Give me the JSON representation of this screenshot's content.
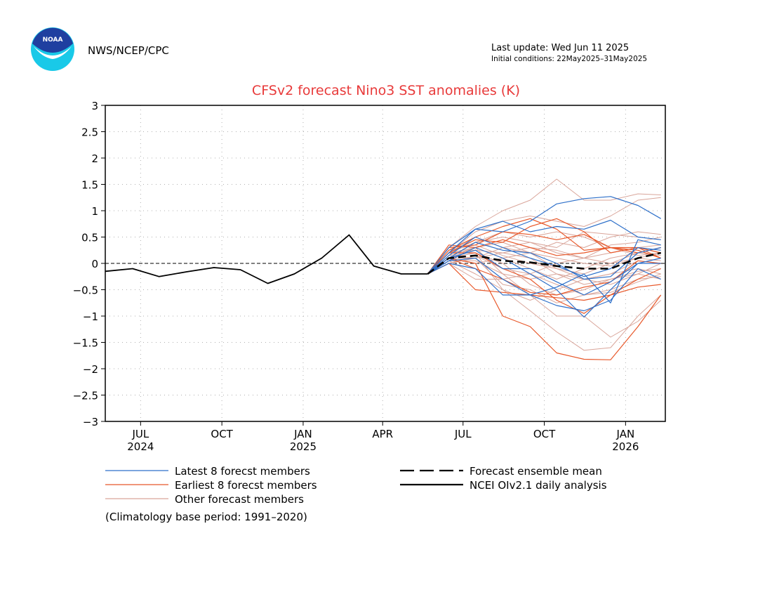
{
  "header": {
    "logo_text": "NOAA",
    "agency": "NWS/NCEP/CPC",
    "last_update": "Last update: Wed Jun 11 2025",
    "initial_conditions": "Initial conditions: 22May2025–31May2025"
  },
  "colors": {
    "title": "#e83a3a",
    "latest": "#2d6fc9",
    "earliest": "#e8582a",
    "other": "#d9a59a",
    "mean": "#000000",
    "analysis": "#000000",
    "grid": "#b0b0b0",
    "logo_top": "#1f3fa0",
    "logo_bottom": "#19c9e8"
  },
  "footnote": "(Climatology base period: 1991–2020)",
  "chart_data": {
    "type": "line",
    "title": "CFSv2 forecast Nino3 SST anomalies (K)",
    "xlabel": "",
    "ylabel": "",
    "ylim": [
      -3,
      3
    ],
    "yticks": [
      3,
      2.5,
      2,
      1.5,
      1,
      0.5,
      0,
      -0.5,
      -1,
      -1.5,
      -2,
      -2.5,
      -3
    ],
    "ytick_labels": [
      "3",
      "2.5",
      "2",
      "1.5",
      "1",
      "0.5",
      "0",
      "−0.5",
      "−1",
      "−1.5",
      "−2",
      "−2.5",
      "−3"
    ],
    "xlim": [
      "2024-05-22",
      "2026-02-15"
    ],
    "xticks": [
      {
        "date": "2024-07-01",
        "label": "JUL",
        "year": "2024"
      },
      {
        "date": "2024-10-01",
        "label": "OCT",
        "year": ""
      },
      {
        "date": "2025-01-01",
        "label": "JAN",
        "year": "2025"
      },
      {
        "date": "2025-04-01",
        "label": "APR",
        "year": ""
      },
      {
        "date": "2025-07-01",
        "label": "JUL",
        "year": ""
      },
      {
        "date": "2025-10-01",
        "label": "OCT",
        "year": ""
      },
      {
        "date": "2026-01-01",
        "label": "JAN",
        "year": "2026"
      }
    ],
    "zero_line": "dashed",
    "grid": true,
    "legend": {
      "position": "bottom",
      "entries": [
        {
          "key": "latest",
          "label": "Latest 8 forecst members",
          "style": "solid"
        },
        {
          "key": "earliest",
          "label": "Earliest 8 forecst members",
          "style": "solid"
        },
        {
          "key": "other",
          "label": "Other forecast members",
          "style": "solid"
        },
        {
          "key": "mean",
          "label": "Forecast ensemble mean",
          "style": "dashed"
        },
        {
          "key": "analysis",
          "label": "NCEI OIv2.1 daily analysis",
          "style": "solid"
        }
      ]
    },
    "analysis": {
      "x": [
        "2024-05-22",
        "2024-06-22",
        "2024-07-22",
        "2024-08-22",
        "2024-09-22",
        "2024-10-22",
        "2024-11-22",
        "2024-12-22",
        "2025-01-22",
        "2025-02-22",
        "2025-03-22",
        "2025-04-22",
        "2025-05-22"
      ],
      "y": [
        -0.15,
        -0.1,
        -0.25,
        -0.16,
        -0.08,
        -0.12,
        -0.38,
        -0.2,
        0.1,
        0.54,
        -0.05,
        -0.2,
        -0.2
      ]
    },
    "forecast_x": [
      "2025-05-22",
      "2025-06-15",
      "2025-07-15",
      "2025-08-15",
      "2025-09-15",
      "2025-10-15",
      "2025-11-15",
      "2025-12-15",
      "2026-01-15",
      "2026-02-10"
    ],
    "ensemble_mean": [
      -0.2,
      0.1,
      0.15,
      0.05,
      0.02,
      -0.05,
      -0.1,
      -0.1,
      0.1,
      0.2
    ],
    "latest_members": [
      [
        -0.2,
        0.3,
        0.65,
        0.6,
        0.8,
        1.13,
        1.23,
        1.27,
        1.1,
        0.85
      ],
      [
        -0.2,
        0.2,
        0.65,
        0.8,
        0.6,
        0.7,
        0.65,
        0.82,
        0.5,
        0.45
      ],
      [
        -0.2,
        0.15,
        0.5,
        0.3,
        0.1,
        -0.05,
        -0.25,
        -0.1,
        0.3,
        0.25
      ],
      [
        -0.2,
        0.05,
        0.3,
        0.1,
        -0.2,
        -0.5,
        -1.02,
        -0.5,
        0.0,
        0.1
      ],
      [
        -0.2,
        0.05,
        0.1,
        -0.3,
        -0.6,
        -0.8,
        -0.9,
        -0.7,
        -0.1,
        -0.3
      ],
      [
        -0.2,
        0.1,
        0.25,
        -0.1,
        -0.1,
        -0.35,
        -0.6,
        -0.35,
        0.0,
        0.0
      ],
      [
        -0.2,
        0.0,
        -0.1,
        -0.6,
        -0.6,
        -0.45,
        -0.2,
        -0.75,
        0.45,
        0.35
      ],
      [
        -0.2,
        0.1,
        0.4,
        0.25,
        0.2,
        0.0,
        -0.3,
        -0.25,
        0.2,
        0.3
      ]
    ],
    "earliest_members": [
      [
        -0.2,
        0.2,
        0.45,
        0.4,
        0.7,
        0.85,
        0.6,
        0.2,
        0.3,
        0.2
      ],
      [
        -0.2,
        0.1,
        0.0,
        -1.0,
        -1.2,
        -1.7,
        -1.82,
        -1.83,
        -1.2,
        -0.6
      ],
      [
        -0.2,
        0.0,
        -0.5,
        -0.55,
        -0.6,
        -0.65,
        -0.7,
        -0.6,
        -0.45,
        -0.4
      ],
      [
        -0.2,
        0.3,
        0.35,
        0.6,
        0.55,
        0.45,
        0.55,
        0.3,
        0.2,
        0.3
      ],
      [
        -0.2,
        0.2,
        0.2,
        -0.1,
        -0.3,
        -0.7,
        -0.95,
        -0.6,
        -0.3,
        -0.1
      ],
      [
        -0.2,
        0.35,
        0.3,
        0.45,
        0.3,
        0.15,
        0.2,
        0.3,
        0.25,
        0.1
      ],
      [
        -0.2,
        0.1,
        -0.1,
        -0.3,
        -0.55,
        -0.6,
        -0.45,
        -0.35,
        0.05,
        0.0
      ],
      [
        -0.2,
        0.25,
        0.5,
        0.7,
        0.85,
        0.65,
        0.25,
        0.3,
        0.3,
        0.1
      ]
    ],
    "other_members": [
      [
        -0.2,
        0.3,
        0.7,
        1.0,
        1.2,
        1.6,
        1.2,
        1.2,
        1.32,
        1.3
      ],
      [
        -0.2,
        0.2,
        0.6,
        0.8,
        0.9,
        0.8,
        0.7,
        0.9,
        1.2,
        1.25
      ],
      [
        -0.2,
        0.1,
        0.2,
        -0.5,
        -0.9,
        -1.3,
        -1.65,
        -1.6,
        -1.0,
        -0.6
      ],
      [
        -0.2,
        0.2,
        0.3,
        -0.2,
        -0.6,
        -1.0,
        -1.0,
        -1.4,
        -1.1,
        -0.7
      ],
      [
        -0.2,
        0.1,
        0.4,
        0.5,
        0.4,
        0.3,
        0.6,
        0.55,
        0.5,
        0.45
      ],
      [
        -0.2,
        0.0,
        0.1,
        0.2,
        0.1,
        -0.2,
        -0.4,
        -0.3,
        -0.2,
        0.0
      ],
      [
        -0.2,
        0.15,
        0.3,
        0.1,
        -0.1,
        -0.3,
        -0.1,
        0.1,
        0.2,
        0.3
      ],
      [
        -0.2,
        0.05,
        -0.2,
        -0.5,
        -0.7,
        -0.5,
        -0.3,
        -0.2,
        -0.1,
        -0.2
      ],
      [
        -0.2,
        0.2,
        0.5,
        0.3,
        0.2,
        0.4,
        0.3,
        0.5,
        0.6,
        0.55
      ],
      [
        -0.2,
        0.1,
        0.3,
        0.4,
        0.2,
        0.1,
        0.0,
        -0.05,
        0.1,
        0.2
      ],
      [
        -0.2,
        0.0,
        -0.3,
        -0.3,
        -0.2,
        -0.4,
        -0.6,
        -0.5,
        -0.3,
        -0.25
      ],
      [
        -0.2,
        0.25,
        0.35,
        0.15,
        0.0,
        -0.1,
        -0.2,
        0.0,
        0.2,
        0.15
      ],
      [
        -0.2,
        0.1,
        0.2,
        0.0,
        -0.4,
        -0.6,
        -0.5,
        -0.3,
        -0.15,
        -0.1
      ],
      [
        -0.2,
        0.15,
        0.1,
        0.3,
        0.4,
        0.2,
        0.1,
        0.35,
        0.4,
        0.5
      ],
      [
        -0.2,
        0.05,
        0.05,
        -0.2,
        -0.3,
        -0.2,
        -0.3,
        -0.4,
        -0.2,
        -0.3
      ],
      [
        -0.2,
        0.2,
        0.4,
        0.6,
        0.5,
        0.6,
        0.5,
        0.3,
        0.15,
        0.2
      ],
      [
        -0.2,
        0.0,
        0.15,
        -0.1,
        -0.2,
        0.0,
        0.1,
        0.0,
        0.1,
        0.05
      ],
      [
        -0.2,
        0.1,
        0.0,
        0.1,
        0.2,
        -0.1,
        -0.3,
        -0.2,
        0.05,
        0.0
      ],
      [
        -0.2,
        0.2,
        0.25,
        0.2,
        0.3,
        0.25,
        0.1,
        0.2,
        0.3,
        0.35
      ],
      [
        -0.2,
        0.1,
        0.1,
        -0.4,
        -0.5,
        -0.75,
        -0.6,
        -0.55,
        -0.35,
        -0.2
      ]
    ]
  }
}
